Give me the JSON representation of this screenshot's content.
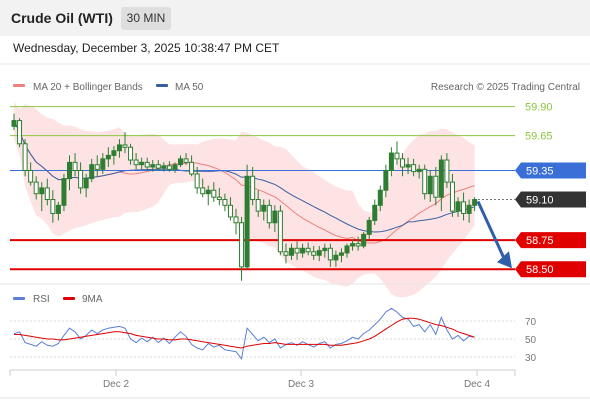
{
  "header": {
    "title": "Crude Oil (WTI)",
    "timeframe": "30 MIN"
  },
  "timestamp": "Wednesday, December 3, 2025 10:38:47 PM CET",
  "legend": {
    "ma20": "MA 20 + Bollinger Bands",
    "ma50": "MA 50",
    "credit": "Research © 2025 Trading Central"
  },
  "rsi_legend": {
    "rsi": "RSI",
    "ma9": "9MA"
  },
  "colors": {
    "ma20": "#f08080",
    "ma50": "#3a5fa0",
    "bands": "#fde3e3",
    "resistance": "#8cc63f",
    "pivot": "#3a6fd8",
    "support": "#e00000",
    "current": "#333333",
    "arrow": "#2f5fa8",
    "candle": "#2e7d32",
    "rsi": "#5b7fd4",
    "rsi_ma": "#e00000"
  },
  "chart_data": {
    "type": "candlestick",
    "title": "Crude Oil (WTI)",
    "timeframe": "30 MIN",
    "x_ticks": [
      "Dec 2",
      "Dec 3",
      "Dec 4"
    ],
    "ylim": [
      58.45,
      60.0
    ],
    "levels": [
      {
        "name": "resistance-2",
        "value": 59.9,
        "label": "59.90",
        "style": "text",
        "kind": "resistance"
      },
      {
        "name": "resistance-1",
        "value": 59.65,
        "label": "59.65",
        "style": "text",
        "kind": "resistance"
      },
      {
        "name": "pivot",
        "value": 59.35,
        "label": "59.35",
        "style": "box",
        "kind": "pivot"
      },
      {
        "name": "current",
        "value": 59.1,
        "label": "59.10",
        "style": "box",
        "kind": "current"
      },
      {
        "name": "support-1",
        "value": 58.75,
        "label": "58.75",
        "style": "box",
        "kind": "support"
      },
      {
        "name": "support-2",
        "value": 58.5,
        "label": "58.50",
        "style": "box",
        "kind": "support"
      }
    ],
    "arrow": {
      "from": 59.1,
      "to": 58.5
    },
    "candles": [
      [
        59.73,
        59.84,
        59.7,
        59.78
      ],
      [
        59.78,
        59.8,
        59.55,
        59.58
      ],
      [
        59.58,
        59.62,
        59.3,
        59.35
      ],
      [
        59.35,
        59.42,
        59.22,
        59.25
      ],
      [
        59.25,
        59.3,
        59.1,
        59.15
      ],
      [
        59.15,
        59.25,
        59.0,
        59.2
      ],
      [
        59.2,
        59.28,
        59.05,
        59.1
      ],
      [
        59.1,
        59.18,
        58.9,
        58.98
      ],
      [
        58.98,
        59.08,
        58.92,
        59.05
      ],
      [
        59.05,
        59.32,
        59.0,
        59.28
      ],
      [
        59.28,
        59.48,
        59.18,
        59.42
      ],
      [
        59.42,
        59.5,
        59.3,
        59.35
      ],
      [
        59.35,
        59.42,
        59.15,
        59.2
      ],
      [
        59.2,
        59.32,
        59.12,
        59.28
      ],
      [
        59.28,
        59.45,
        59.25,
        59.4
      ],
      [
        59.4,
        59.48,
        59.3,
        59.36
      ],
      [
        59.36,
        59.5,
        59.32,
        59.45
      ],
      [
        59.45,
        59.55,
        59.38,
        59.48
      ],
      [
        59.48,
        59.56,
        59.4,
        59.52
      ],
      [
        59.52,
        59.62,
        59.46,
        59.57
      ],
      [
        59.57,
        59.68,
        59.5,
        59.55
      ],
      [
        59.55,
        59.58,
        59.4,
        59.44
      ],
      [
        59.44,
        59.5,
        59.36,
        59.4
      ],
      [
        59.4,
        59.46,
        59.36,
        59.42
      ],
      [
        59.42,
        59.46,
        59.35,
        59.38
      ],
      [
        59.38,
        59.44,
        59.34,
        59.4
      ],
      [
        59.4,
        59.44,
        59.35,
        59.37
      ],
      [
        59.37,
        59.42,
        59.34,
        59.39
      ],
      [
        59.39,
        59.43,
        59.34,
        59.36
      ],
      [
        59.36,
        59.42,
        59.33,
        59.4
      ],
      [
        59.4,
        59.48,
        59.38,
        59.45
      ],
      [
        59.45,
        59.5,
        59.4,
        59.42
      ],
      [
        59.42,
        59.48,
        59.3,
        59.32
      ],
      [
        59.32,
        59.38,
        59.15,
        59.2
      ],
      [
        59.2,
        59.28,
        59.12,
        59.15
      ],
      [
        59.15,
        59.22,
        59.05,
        59.18
      ],
      [
        59.18,
        59.25,
        59.08,
        59.12
      ],
      [
        59.12,
        59.2,
        59.05,
        59.1
      ],
      [
        59.1,
        59.15,
        59.0,
        59.05
      ],
      [
        59.05,
        59.12,
        58.92,
        58.95
      ],
      [
        58.95,
        59.02,
        58.8,
        58.9
      ],
      [
        58.9,
        58.95,
        58.4,
        58.52
      ],
      [
        58.52,
        59.4,
        58.5,
        59.3
      ],
      [
        59.3,
        59.38,
        59.05,
        59.1
      ],
      [
        59.1,
        59.18,
        58.95,
        59.0
      ],
      [
        59.0,
        59.1,
        58.92,
        59.05
      ],
      [
        59.05,
        59.1,
        58.85,
        58.9
      ],
      [
        58.9,
        59.05,
        58.82,
        59.0
      ],
      [
        59.0,
        59.05,
        58.62,
        58.65
      ],
      [
        58.65,
        58.72,
        58.55,
        58.62
      ],
      [
        58.62,
        58.72,
        58.58,
        58.68
      ],
      [
        58.68,
        58.74,
        58.58,
        58.64
      ],
      [
        58.64,
        58.72,
        58.6,
        58.68
      ],
      [
        58.68,
        58.73,
        58.62,
        58.65
      ],
      [
        58.65,
        58.7,
        58.58,
        58.62
      ],
      [
        58.62,
        58.7,
        58.57,
        58.66
      ],
      [
        58.66,
        58.72,
        58.6,
        58.68
      ],
      [
        58.68,
        58.72,
        58.52,
        58.58
      ],
      [
        58.58,
        58.66,
        58.52,
        58.62
      ],
      [
        58.62,
        58.68,
        58.56,
        58.64
      ],
      [
        58.64,
        58.72,
        58.6,
        58.7
      ],
      [
        58.7,
        58.76,
        58.66,
        58.72
      ],
      [
        58.72,
        58.78,
        58.66,
        58.7
      ],
      [
        58.7,
        58.82,
        58.68,
        58.8
      ],
      [
        58.8,
        58.95,
        58.76,
        58.92
      ],
      [
        58.92,
        59.1,
        58.88,
        59.05
      ],
      [
        59.05,
        59.22,
        59.0,
        59.18
      ],
      [
        59.18,
        59.4,
        59.12,
        59.35
      ],
      [
        59.35,
        59.55,
        59.3,
        59.5
      ],
      [
        59.5,
        59.6,
        59.4,
        59.45
      ],
      [
        59.45,
        59.5,
        59.3,
        59.38
      ],
      [
        59.38,
        59.46,
        59.32,
        59.4
      ],
      [
        59.4,
        59.45,
        59.3,
        59.34
      ],
      [
        59.34,
        59.4,
        59.28,
        59.36
      ],
      [
        59.36,
        59.4,
        59.1,
        59.15
      ],
      [
        59.15,
        59.35,
        59.08,
        59.3
      ],
      [
        59.3,
        59.38,
        59.05,
        59.12
      ],
      [
        59.12,
        59.48,
        59.0,
        59.44
      ],
      [
        59.44,
        59.5,
        59.2,
        59.25
      ],
      [
        59.25,
        59.32,
        58.95,
        59.0
      ],
      [
        59.0,
        59.12,
        58.95,
        59.08
      ],
      [
        59.08,
        59.16,
        58.92,
        58.98
      ],
      [
        58.98,
        59.1,
        58.9,
        59.05
      ],
      [
        59.05,
        59.12,
        59.0,
        59.1
      ]
    ],
    "rsi": {
      "ylim": [
        20,
        80
      ],
      "ticks": [
        "70",
        "50",
        "30"
      ],
      "values": [
        56,
        58,
        46,
        44,
        42,
        47,
        43,
        42,
        45,
        54,
        62,
        58,
        50,
        54,
        60,
        56,
        60,
        62,
        63,
        64,
        62,
        50,
        46,
        51,
        47,
        52,
        46,
        51,
        45,
        52,
        58,
        53,
        44,
        40,
        38,
        45,
        41,
        43,
        38,
        37,
        36,
        28,
        62,
        55,
        48,
        52,
        46,
        50,
        40,
        44,
        46,
        43,
        47,
        44,
        41,
        45,
        47,
        40,
        44,
        45,
        48,
        52,
        50,
        56,
        60,
        66,
        72,
        80,
        84,
        80,
        74,
        72,
        64,
        66,
        58,
        66,
        55,
        74,
        60,
        50,
        54,
        48,
        53,
        52
      ],
      "ma9": [
        55,
        55,
        54,
        53,
        52,
        51,
        50,
        50,
        49,
        49,
        50,
        51,
        52,
        53,
        54,
        55,
        56,
        57,
        58,
        58,
        57,
        56,
        54,
        53,
        52,
        51,
        50,
        50,
        49,
        49,
        50,
        50,
        49,
        48,
        47,
        46,
        45,
        44,
        43,
        42,
        41,
        40,
        42,
        43,
        44,
        45,
        45,
        46,
        45,
        44,
        44,
        44,
        44,
        44,
        44,
        44,
        44,
        43,
        43,
        43,
        44,
        45,
        46,
        48,
        50,
        53,
        57,
        61,
        65,
        69,
        72,
        73,
        73,
        72,
        70,
        68,
        66,
        65,
        63,
        61,
        58,
        56,
        54,
        52
      ]
    }
  }
}
